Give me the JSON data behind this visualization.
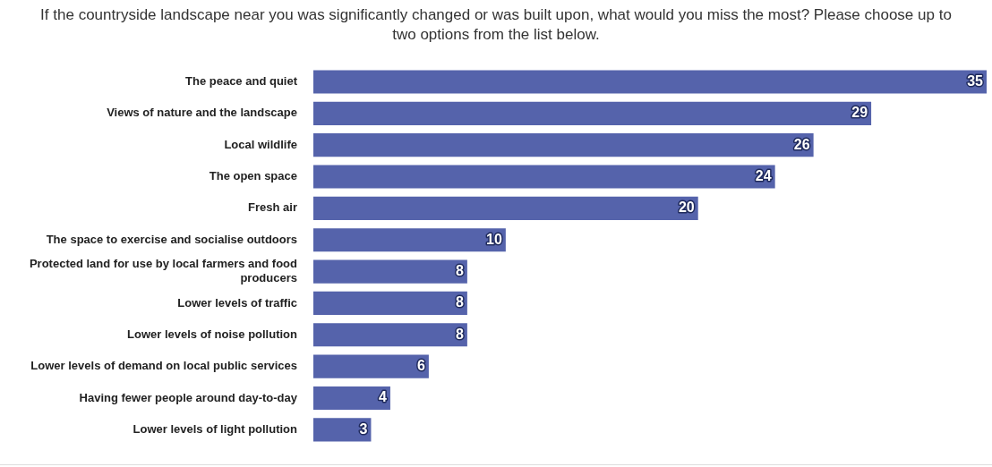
{
  "chart_data": {
    "type": "bar",
    "orientation": "horizontal",
    "title": "If the countryside landscape near you was significantly changed or was built upon, what would you miss the most? Please choose up to two options from the list below.",
    "categories": [
      "The peace and quiet",
      "Views of nature and the landscape",
      "Local wildlife",
      "The open space",
      "Fresh air",
      "The space to exercise and socialise outdoors",
      "Protected land for use by local farmers and food producers",
      "Lower levels of traffic",
      "Lower levels of noise pollution",
      "Lower levels of demand on local public services",
      "Having fewer people around day-to-day",
      "Lower levels of light pollution"
    ],
    "values": [
      35,
      29,
      26,
      24,
      20,
      10,
      8,
      8,
      8,
      6,
      4,
      3
    ],
    "color": "#5563ab",
    "data_labels": true,
    "legend": false
  }
}
